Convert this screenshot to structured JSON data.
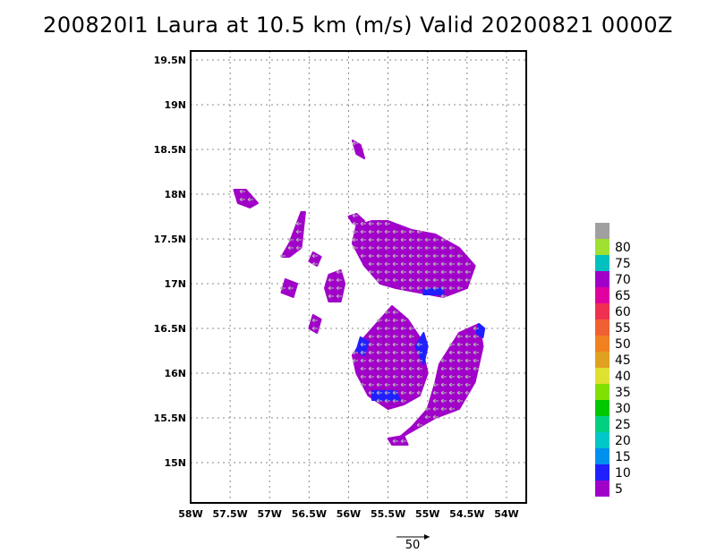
{
  "title": "2008201 1 Laura at 10.5 km (m/s) Valid 20200821  0000Z",
  "chart_data": {
    "type": "heatmap",
    "title": "200820I1 Laura at 10.5 km (m/s) Valid 20200821  0000Z",
    "x_ticks": [
      {
        "value": -58,
        "label": "58W"
      },
      {
        "value": -57.5,
        "label": "57.5W"
      },
      {
        "value": -57,
        "label": "57W"
      },
      {
        "value": -56.5,
        "label": "56.5W"
      },
      {
        "value": -56,
        "label": "56W"
      },
      {
        "value": -55.5,
        "label": "55.5W"
      },
      {
        "value": -55,
        "label": "55W"
      },
      {
        "value": -54.5,
        "label": "54.5W"
      },
      {
        "value": -54,
        "label": "54W"
      }
    ],
    "y_ticks": [
      {
        "value": 15,
        "label": "15N"
      },
      {
        "value": 15.5,
        "label": "15.5N"
      },
      {
        "value": 16,
        "label": "16N"
      },
      {
        "value": 16.5,
        "label": "16.5N"
      },
      {
        "value": 17,
        "label": "17N"
      },
      {
        "value": 17.5,
        "label": "17.5N"
      },
      {
        "value": 18,
        "label": "18N"
      },
      {
        "value": 18.5,
        "label": "18.5N"
      },
      {
        "value": 19,
        "label": "19N"
      },
      {
        "value": 19.5,
        "label": "19.5N"
      }
    ],
    "xlim": [
      -58,
      -53.75
    ],
    "ylim": [
      14.55,
      19.6
    ],
    "grid": true,
    "colorbar": {
      "levels": [
        {
          "label": "5",
          "color": "#a000c8"
        },
        {
          "label": "10",
          "color": "#2020ff"
        },
        {
          "label": "15",
          "color": "#0090f0"
        },
        {
          "label": "20",
          "color": "#00c8c8"
        },
        {
          "label": "25",
          "color": "#00d080"
        },
        {
          "label": "30",
          "color": "#00c800"
        },
        {
          "label": "35",
          "color": "#80e000"
        },
        {
          "label": "40",
          "color": "#e0e030"
        },
        {
          "label": "45",
          "color": "#e0a020"
        },
        {
          "label": "50",
          "color": "#f08020"
        },
        {
          "label": "55",
          "color": "#f06030"
        },
        {
          "label": "60",
          "color": "#f03050"
        },
        {
          "label": "65",
          "color": "#e000a0"
        },
        {
          "label": "70",
          "color": "#a000c8"
        },
        {
          "label": "75",
          "color": "#00c0c0"
        },
        {
          "label": "80",
          "color": "#a0e030"
        },
        {
          "label": "",
          "color": "#a0a0a0"
        }
      ]
    },
    "vector_reference": {
      "label": "50"
    },
    "regions": [
      {
        "name": "central-north",
        "lon": [
          -55.9,
          -55.7,
          -55.5,
          -55.2,
          -54.9,
          -54.6,
          -54.4,
          -54.5,
          -54.8,
          -55.1,
          -55.4,
          -55.6,
          -55.8,
          -55.95
        ],
        "lat": [
          17.65,
          17.7,
          17.7,
          17.6,
          17.55,
          17.4,
          17.2,
          16.95,
          16.85,
          16.9,
          16.95,
          17.0,
          17.2,
          17.45
        ]
      },
      {
        "name": "upper-left-small",
        "lon": [
          -56.0,
          -55.9,
          -55.8,
          -55.85,
          -55.95
        ],
        "lat": [
          17.75,
          17.78,
          17.7,
          17.65,
          17.68
        ]
      },
      {
        "name": "central-south",
        "lon": [
          -55.8,
          -55.6,
          -55.45,
          -55.25,
          -55.1,
          -55.0,
          -55.1,
          -55.3,
          -55.5,
          -55.75,
          -55.9,
          -55.95
        ],
        "lat": [
          16.4,
          16.6,
          16.75,
          16.6,
          16.4,
          16.0,
          15.75,
          15.65,
          15.6,
          15.75,
          16.0,
          16.2
        ]
      },
      {
        "name": "east-south",
        "lon": [
          -54.85,
          -54.6,
          -54.35,
          -54.3,
          -54.4,
          -54.6,
          -54.9,
          -55.1,
          -55.3,
          -55.4,
          -55.2,
          -55.0,
          -54.9
        ],
        "lat": [
          16.1,
          16.45,
          16.55,
          16.3,
          15.9,
          15.6,
          15.5,
          15.4,
          15.3,
          15.25,
          15.4,
          15.6,
          15.9
        ]
      },
      {
        "name": "west-north",
        "lon": [
          -56.75,
          -56.6,
          -56.55,
          -56.6,
          -56.75,
          -56.85
        ],
        "lat": [
          17.45,
          17.8,
          17.8,
          17.4,
          17.3,
          17.3
        ]
      },
      {
        "name": "west-mid",
        "lon": [
          -56.25,
          -56.1,
          -56.05,
          -56.1,
          -56.25,
          -56.3
        ],
        "lat": [
          17.1,
          17.15,
          17.0,
          16.8,
          16.8,
          16.95
        ]
      },
      {
        "name": "west-small-1",
        "lon": [
          -56.45,
          -56.35,
          -56.4,
          -56.5
        ],
        "lat": [
          17.35,
          17.3,
          17.2,
          17.25
        ]
      },
      {
        "name": "far-west",
        "lon": [
          -57.45,
          -57.3,
          -57.15,
          -57.25,
          -57.4
        ],
        "lat": [
          18.05,
          18.05,
          17.9,
          17.85,
          17.9
        ]
      },
      {
        "name": "west-small-2",
        "lon": [
          -56.8,
          -56.65,
          -56.7,
          -56.85
        ],
        "lat": [
          17.05,
          17.0,
          16.85,
          16.9
        ]
      },
      {
        "name": "west-small-3",
        "lon": [
          -56.45,
          -56.35,
          -56.4,
          -56.5
        ],
        "lat": [
          16.65,
          16.6,
          16.45,
          16.5
        ]
      },
      {
        "name": "north-speck",
        "lon": [
          -55.95,
          -55.85,
          -55.8,
          -55.9
        ],
        "lat": [
          18.6,
          18.55,
          18.4,
          18.45
        ]
      },
      {
        "name": "south-tail",
        "lon": [
          -55.5,
          -55.3,
          -55.25,
          -55.45
        ],
        "lat": [
          15.27,
          15.3,
          15.2,
          15.2
        ]
      }
    ],
    "fast_regions": [
      {
        "name": "central-south-east-edge",
        "lon": [
          -55.05,
          -55.0,
          -55.05,
          -55.15
        ],
        "lat": [
          16.45,
          16.3,
          16.1,
          16.3
        ]
      },
      {
        "name": "central-south-bottom",
        "lon": [
          -55.7,
          -55.4,
          -55.35,
          -55.7
        ],
        "lat": [
          15.8,
          15.8,
          15.7,
          15.7
        ]
      },
      {
        "name": "central-south-west-edge",
        "lon": [
          -55.85,
          -55.75,
          -55.8,
          -55.9
        ],
        "lat": [
          16.4,
          16.35,
          16.2,
          16.25
        ]
      },
      {
        "name": "central-north-bottom",
        "lon": [
          -55.05,
          -54.8,
          -54.8,
          -55.05
        ],
        "lat": [
          16.93,
          16.95,
          16.88,
          16.88
        ]
      },
      {
        "name": "east-south-top",
        "lon": [
          -54.35,
          -54.28,
          -54.3,
          -54.38
        ],
        "lat": [
          16.55,
          16.5,
          16.4,
          16.45
        ]
      }
    ],
    "arrow_direction": "westward"
  }
}
